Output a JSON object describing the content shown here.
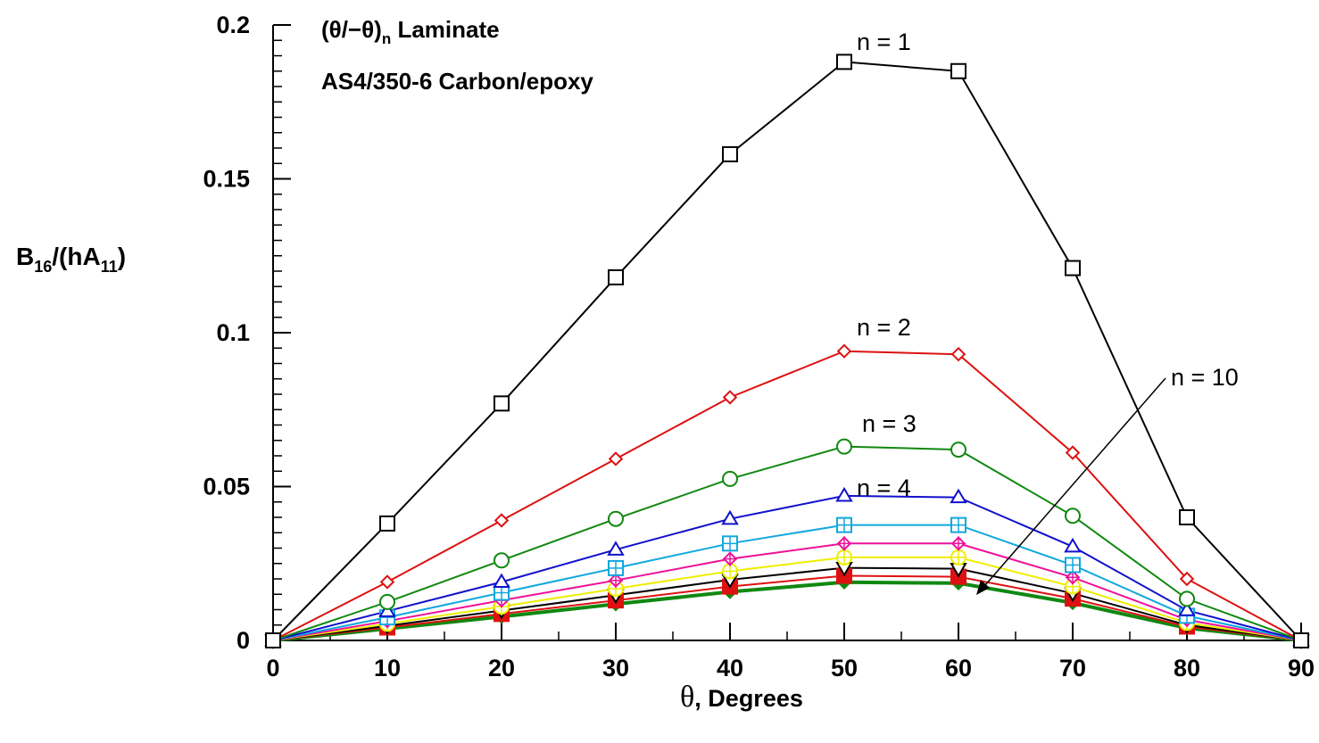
{
  "chart_data": {
    "type": "line",
    "title_line1_pre": "(θ/−θ)",
    "title_line1_sub": "n",
    "title_line1_post": " Laminate",
    "title_line2": "AS4/350-6 Carbon/epoxy",
    "xlabel_symbol": "θ",
    "xlabel_text": ", Degrees",
    "ylabel_main": "B",
    "ylabel_sub1": "16",
    "ylabel_mid": "/(hA",
    "ylabel_sub2": "11",
    "ylabel_end": ")",
    "xlim": [
      0,
      90
    ],
    "ylim": [
      0,
      0.2
    ],
    "x_ticks": [
      "0",
      "10",
      "20",
      "30",
      "40",
      "50",
      "60",
      "70",
      "80",
      "90"
    ],
    "y_ticks": [
      "0",
      "0.05",
      "0.1",
      "0.15",
      "0.2"
    ],
    "grid": false,
    "x": [
      0,
      10,
      20,
      30,
      40,
      50,
      60,
      70,
      80,
      90
    ],
    "series": [
      {
        "values": [
          0,
          0.038,
          0.077,
          0.118,
          0.158,
          0.188,
          0.185,
          0.121,
          0.04,
          0
        ],
        "color": "#000000",
        "marker": "square"
      },
      {
        "values": [
          0,
          0.019,
          0.039,
          0.059,
          0.079,
          0.094,
          0.093,
          0.061,
          0.02,
          0
        ],
        "color": "#dd1111",
        "marker": "diamond"
      },
      {
        "values": [
          0,
          0.0125,
          0.026,
          0.0395,
          0.0525,
          0.063,
          0.062,
          0.0405,
          0.0135,
          0
        ],
        "color": "#118811",
        "marker": "circle"
      },
      {
        "values": [
          0,
          0.0095,
          0.019,
          0.0295,
          0.0395,
          0.047,
          0.0465,
          0.0305,
          0.0098,
          0
        ],
        "color": "#1111cc",
        "marker": "triangle"
      },
      {
        "values": [
          0,
          0.0075,
          0.0155,
          0.0235,
          0.0315,
          0.0375,
          0.0375,
          0.0245,
          0.008,
          0
        ],
        "color": "#11a8dd",
        "marker": "square-plus"
      },
      {
        "values": [
          0,
          0.0063,
          0.013,
          0.0195,
          0.0265,
          0.0315,
          0.0315,
          0.0205,
          0.0067,
          0
        ],
        "color": "#ee1199",
        "marker": "diamond-plus"
      },
      {
        "values": [
          0,
          0.0054,
          0.011,
          0.0168,
          0.0225,
          0.027,
          0.027,
          0.0175,
          0.0057,
          0
        ],
        "color": "#eeee00",
        "marker": "circle-plus"
      },
      {
        "values": [
          0,
          0.0047,
          0.0097,
          0.0147,
          0.0197,
          0.0236,
          0.0233,
          0.0153,
          0.005,
          0
        ],
        "color": "#000000",
        "marker": "triangle-down"
      },
      {
        "values": [
          0,
          0.0042,
          0.0086,
          0.013,
          0.0175,
          0.021,
          0.0207,
          0.0136,
          0.0045,
          0
        ],
        "color": "#dd1111",
        "marker": "filled-square"
      },
      {
        "values": [
          0,
          0.0038,
          0.0077,
          0.0118,
          0.0158,
          0.0189,
          0.0186,
          0.0122,
          0.004,
          0
        ],
        "color": "#118811",
        "marker": "filled-diamond",
        "thick": true
      }
    ],
    "annotations": {
      "n1": "n = 1",
      "n2": "n = 2",
      "n3": "n = 3",
      "n4": "n = 4",
      "n10": "n = 10"
    }
  }
}
